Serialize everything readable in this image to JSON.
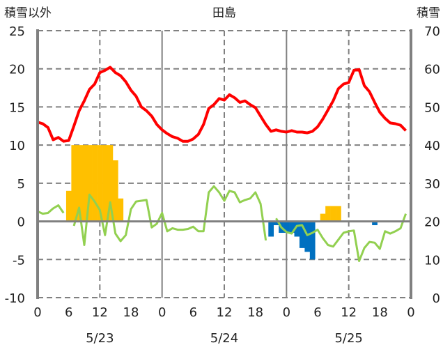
{
  "chart_data": {
    "type": "bar+line",
    "title": "田島",
    "ylabel_left": "積雪以外",
    "ylabel_right": "積雪",
    "ylim_left": [
      -10,
      25
    ],
    "ylim_right": [
      0,
      70
    ],
    "yticks_left": [
      "25",
      "20",
      "15",
      "10",
      "5",
      "0",
      "-5",
      "-10"
    ],
    "yticks_right": [
      "70",
      "60",
      "50",
      "40",
      "30",
      "20",
      "10",
      "0"
    ],
    "xlim_hours": [
      0,
      72
    ],
    "xticks": [
      "0",
      "6",
      "12",
      "18",
      "0",
      "6",
      "12",
      "18",
      "0",
      "6",
      "12",
      "18",
      "0"
    ],
    "dates": [
      "5/23",
      "5/24",
      "5/25"
    ],
    "grid": true,
    "colors": {
      "temperature": "#ff0000",
      "green_series": "#92d050",
      "bar_positive": "#ffc000",
      "bar_negative": "#0070c0",
      "grid": "#808080"
    },
    "line_series": [
      {
        "name": "red",
        "values": [
          13.0,
          12.8,
          12.3,
          10.7,
          11.0,
          10.5,
          10.6,
          12.5,
          14.5,
          15.8,
          17.3,
          18.0,
          19.5,
          19.8,
          20.2,
          19.5,
          19.1,
          18.3,
          17.2,
          16.4,
          15.0,
          14.5,
          13.8,
          12.7,
          12.0,
          11.5,
          11.1,
          10.9,
          10.5,
          10.5,
          10.8,
          11.4,
          12.7,
          14.8,
          15.3,
          16.1,
          15.9,
          16.6,
          16.2,
          15.6,
          15.8,
          15.3,
          14.9,
          13.8,
          12.7,
          11.8,
          12.0,
          11.8,
          11.7,
          11.9,
          11.7,
          11.7,
          11.6,
          11.8,
          12.4,
          13.4,
          14.6,
          15.8,
          17.4,
          18.0,
          18.2,
          19.8,
          19.9,
          17.8,
          17.0,
          15.6,
          14.3,
          13.5,
          12.9,
          12.8,
          12.6,
          11.9
        ]
      },
      {
        "name": "green",
        "values": [
          1.3,
          1.0,
          1.1,
          1.7,
          2.1,
          1.1,
          null,
          -0.6,
          1.8,
          -3.1,
          3.5,
          2.6,
          1.5,
          -1.8,
          2.5,
          -1.6,
          -2.6,
          -1.8,
          1.6,
          2.6,
          2.7,
          2.8,
          -0.8,
          -0.3,
          1.1,
          -1.3,
          -0.9,
          -1.1,
          -1.1,
          -1.0,
          -0.7,
          -1.3,
          -1.3,
          3.8,
          4.6,
          3.8,
          2.7,
          4.0,
          3.8,
          2.5,
          2.8,
          3.0,
          3.8,
          2.3,
          -2.5,
          null,
          0.4,
          -0.8,
          -1.4,
          -1.6,
          -0.6,
          -0.5,
          -1.8,
          -1.5,
          -1.1,
          -2.2,
          -3.1,
          -3.3,
          -2.4,
          -1.5,
          -1.3,
          -1.2,
          -5.2,
          -3.5,
          -2.7,
          -2.8,
          -3.6,
          -1.3,
          -1.6,
          -1.3,
          -0.9,
          1.0
        ]
      }
    ],
    "bars": [
      {
        "hour": 6,
        "value": 4
      },
      {
        "hour": 7,
        "value": 10
      },
      {
        "hour": 8,
        "value": 10
      },
      {
        "hour": 9,
        "value": 10
      },
      {
        "hour": 10,
        "value": 10
      },
      {
        "hour": 11,
        "value": 10
      },
      {
        "hour": 12,
        "value": 10
      },
      {
        "hour": 13,
        "value": 10
      },
      {
        "hour": 14,
        "value": 10
      },
      {
        "hour": 15,
        "value": 8
      },
      {
        "hour": 16,
        "value": 3
      },
      {
        "hour": 45,
        "value": -2
      },
      {
        "hour": 46,
        "value": -0.5
      },
      {
        "hour": 47,
        "value": -1.5
      },
      {
        "hour": 48,
        "value": -1.5
      },
      {
        "hour": 49,
        "value": -1.5
      },
      {
        "hour": 50,
        "value": -2
      },
      {
        "hour": 51,
        "value": -3.5
      },
      {
        "hour": 52,
        "value": -4
      },
      {
        "hour": 53,
        "value": -5
      },
      {
        "hour": 55,
        "value": 1
      },
      {
        "hour": 56,
        "value": 2
      },
      {
        "hour": 57,
        "value": 2
      },
      {
        "hour": 58,
        "value": 2
      },
      {
        "hour": 65,
        "value": -0.5
      }
    ]
  }
}
